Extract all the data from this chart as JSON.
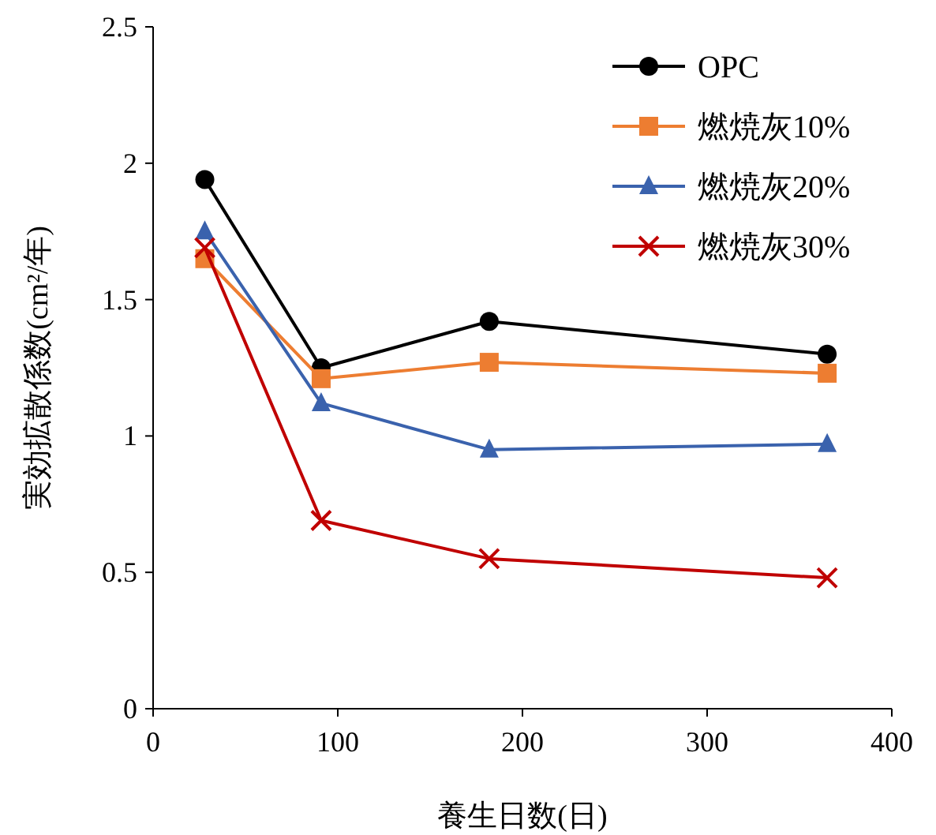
{
  "chart_data": {
    "type": "line",
    "xlabel": "養生日数(日)",
    "ylabel": "実効拡散係数(cm²/年)",
    "xlim": [
      0,
      400
    ],
    "xticks": [
      0,
      100,
      200,
      300,
      400
    ],
    "ylim": [
      0,
      2.5
    ],
    "yticks": [
      0,
      0.5,
      1,
      1.5,
      2,
      2.5
    ],
    "grid": false,
    "legend": "top right",
    "x": [
      28,
      91,
      182,
      365
    ],
    "series": [
      {
        "name": "OPC",
        "color": "#000000",
        "marker": "circle",
        "values": [
          1.94,
          1.25,
          1.42,
          1.3
        ]
      },
      {
        "name": "燃焼灰10%",
        "color": "#ed7d31",
        "marker": "square",
        "values": [
          1.65,
          1.21,
          1.27,
          1.23
        ]
      },
      {
        "name": "燃焼灰20%",
        "color": "#3a62ad",
        "marker": "triangle",
        "values": [
          1.75,
          1.12,
          0.95,
          0.97
        ]
      },
      {
        "name": "燃焼灰30%",
        "color": "#c00000",
        "marker": "cross",
        "values": [
          1.69,
          0.69,
          0.55,
          0.48
        ]
      }
    ]
  }
}
